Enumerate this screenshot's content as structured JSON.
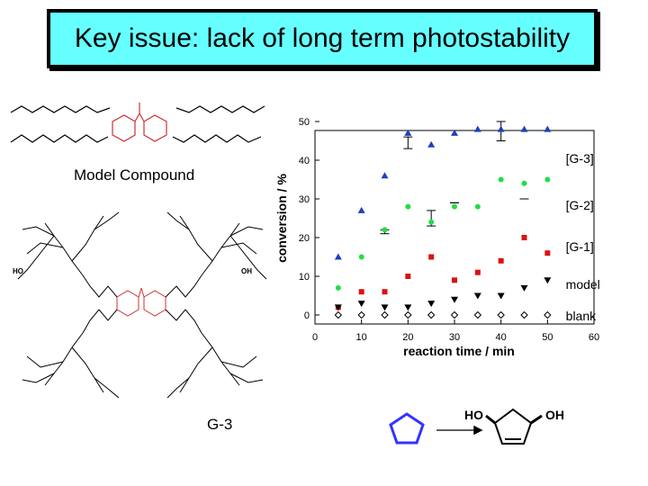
{
  "slide": {
    "title": "Key issue: lack of long term photostability",
    "model_compound_label": "Model Compound",
    "dendrimer_label": "G-3",
    "reaction_product_hydroxyl_left": "HO",
    "reaction_product_hydroxyl_right": "OH"
  },
  "dendrimer_terminal_groups": [
    "HO",
    "OH"
  ],
  "chart_data": {
    "type": "scatter",
    "xlabel": "reaction time / min",
    "ylabel": "conversion / %",
    "xlim": [
      0,
      60
    ],
    "ylim": [
      0,
      50
    ],
    "x_ticks": [
      0,
      10,
      20,
      30,
      40,
      50,
      60
    ],
    "y_ticks": [
      0,
      10,
      20,
      30,
      40,
      50
    ],
    "grid": false,
    "series": [
      {
        "name": "[G-3]",
        "color": "#1f3fbf",
        "marker": "triangle-up",
        "x": [
          5,
          10,
          15,
          20,
          25,
          30,
          35,
          40,
          45,
          50
        ],
        "y": [
          15,
          27,
          36,
          47,
          44,
          47,
          48,
          48,
          48,
          48
        ]
      },
      {
        "name": "[G-2]",
        "color": "#22dd44",
        "marker": "circle",
        "x": [
          5,
          10,
          15,
          20,
          25,
          30,
          35,
          40,
          45,
          50
        ],
        "y": [
          7,
          15,
          22,
          28,
          24,
          28,
          28,
          35,
          34,
          35
        ]
      },
      {
        "name": "[G-1]",
        "color": "#dd1111",
        "marker": "square",
        "x": [
          5,
          10,
          15,
          20,
          25,
          30,
          35,
          40,
          45,
          50
        ],
        "y": [
          2,
          6,
          6,
          10,
          15,
          9,
          11,
          14,
          20,
          16
        ]
      },
      {
        "name": "model",
        "color": "#000000",
        "marker": "triangle-down",
        "x": [
          5,
          10,
          15,
          20,
          25,
          30,
          35,
          40,
          45,
          50
        ],
        "y": [
          2,
          3,
          2,
          2,
          3,
          4,
          5,
          5,
          7,
          9
        ]
      },
      {
        "name": "blank",
        "color": "#000000",
        "marker": "diamond-open",
        "x": [
          5,
          10,
          15,
          20,
          25,
          30,
          35,
          40,
          45,
          50
        ],
        "y": [
          0,
          0,
          0,
          0,
          0,
          0,
          0,
          0,
          0,
          0
        ]
      }
    ],
    "error_bars": [
      {
        "x": 15,
        "low": 21,
        "high": 22
      },
      {
        "x": 20,
        "low": 43,
        "high": 46
      },
      {
        "x": 25,
        "low": 23,
        "high": 27
      },
      {
        "x": 30,
        "low": 29,
        "high": 29
      },
      {
        "x": 40,
        "low": 45,
        "high": 50
      },
      {
        "x": 45,
        "low": 30,
        "high": 30
      }
    ]
  }
}
